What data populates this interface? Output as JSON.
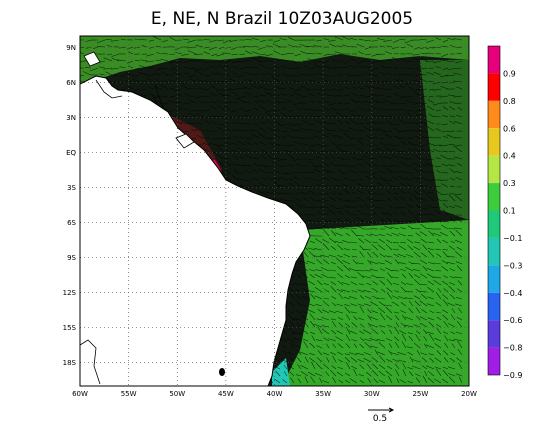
{
  "title": "E, NE, N Brazil 10Z03AUG2005",
  "map": {
    "lon_range": [
      -60,
      -20
    ],
    "lat_range": [
      -20,
      10
    ],
    "lon_ticks": [
      "60W",
      "55W",
      "50W",
      "45W",
      "40W",
      "35W",
      "30W",
      "25W",
      "20W"
    ],
    "lat_ticks": [
      "9N",
      "6N",
      "3N",
      "EQ",
      "3S",
      "6S",
      "9S",
      "12S",
      "15S",
      "18S"
    ],
    "grid": "dotted",
    "land_color": "#ffffff",
    "vector_color": "#000000"
  },
  "colorbar": {
    "placement": "right",
    "labels": [
      "0.9",
      "0.8",
      "0.6",
      "0.4",
      "0.3",
      "0.1",
      "−0.1",
      "−0.3",
      "−0.4",
      "−0.6",
      "−0.8",
      "−0.9"
    ],
    "colors": [
      "#e6007a",
      "#ff0000",
      "#ff8c1a",
      "#e8c81e",
      "#b4e646",
      "#3ccc3c",
      "#1fc97a",
      "#22c6b4",
      "#1ea8e6",
      "#2864f0",
      "#5a3cdc",
      "#a01ee6"
    ]
  },
  "vector_key": {
    "value": "0.5"
  }
}
